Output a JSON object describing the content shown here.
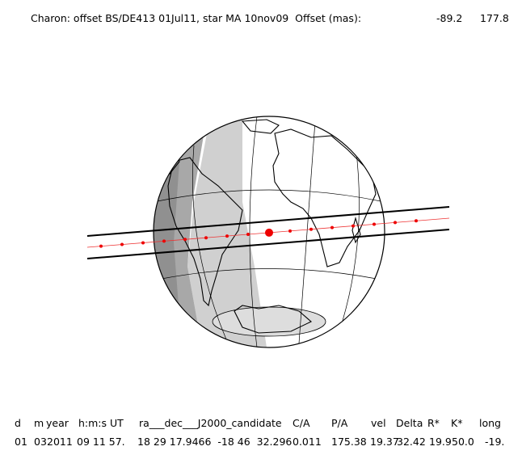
{
  "header": {
    "title": "Charon: offset BS/DE413 01Jul11, star MA 10nov09  Offset (mas):",
    "offset_ra": "-89.2",
    "offset_dec": "177.8"
  },
  "table": {
    "headers": [
      "d",
      "m",
      "year",
      "h:m:s UT",
      "ra___dec___J2000_candidate",
      "C/A",
      "P/A",
      "vel",
      "Delta",
      "R*",
      "K*",
      "long"
    ],
    "rows": [
      [
        "01",
        "03",
        "2011",
        "09 11 57.",
        "18 29 17.9466  -18 46  32.296",
        "0.011",
        "175.38",
        "19.37",
        "32.42",
        "19.9",
        "50.0",
        "-19."
      ]
    ]
  }
}
